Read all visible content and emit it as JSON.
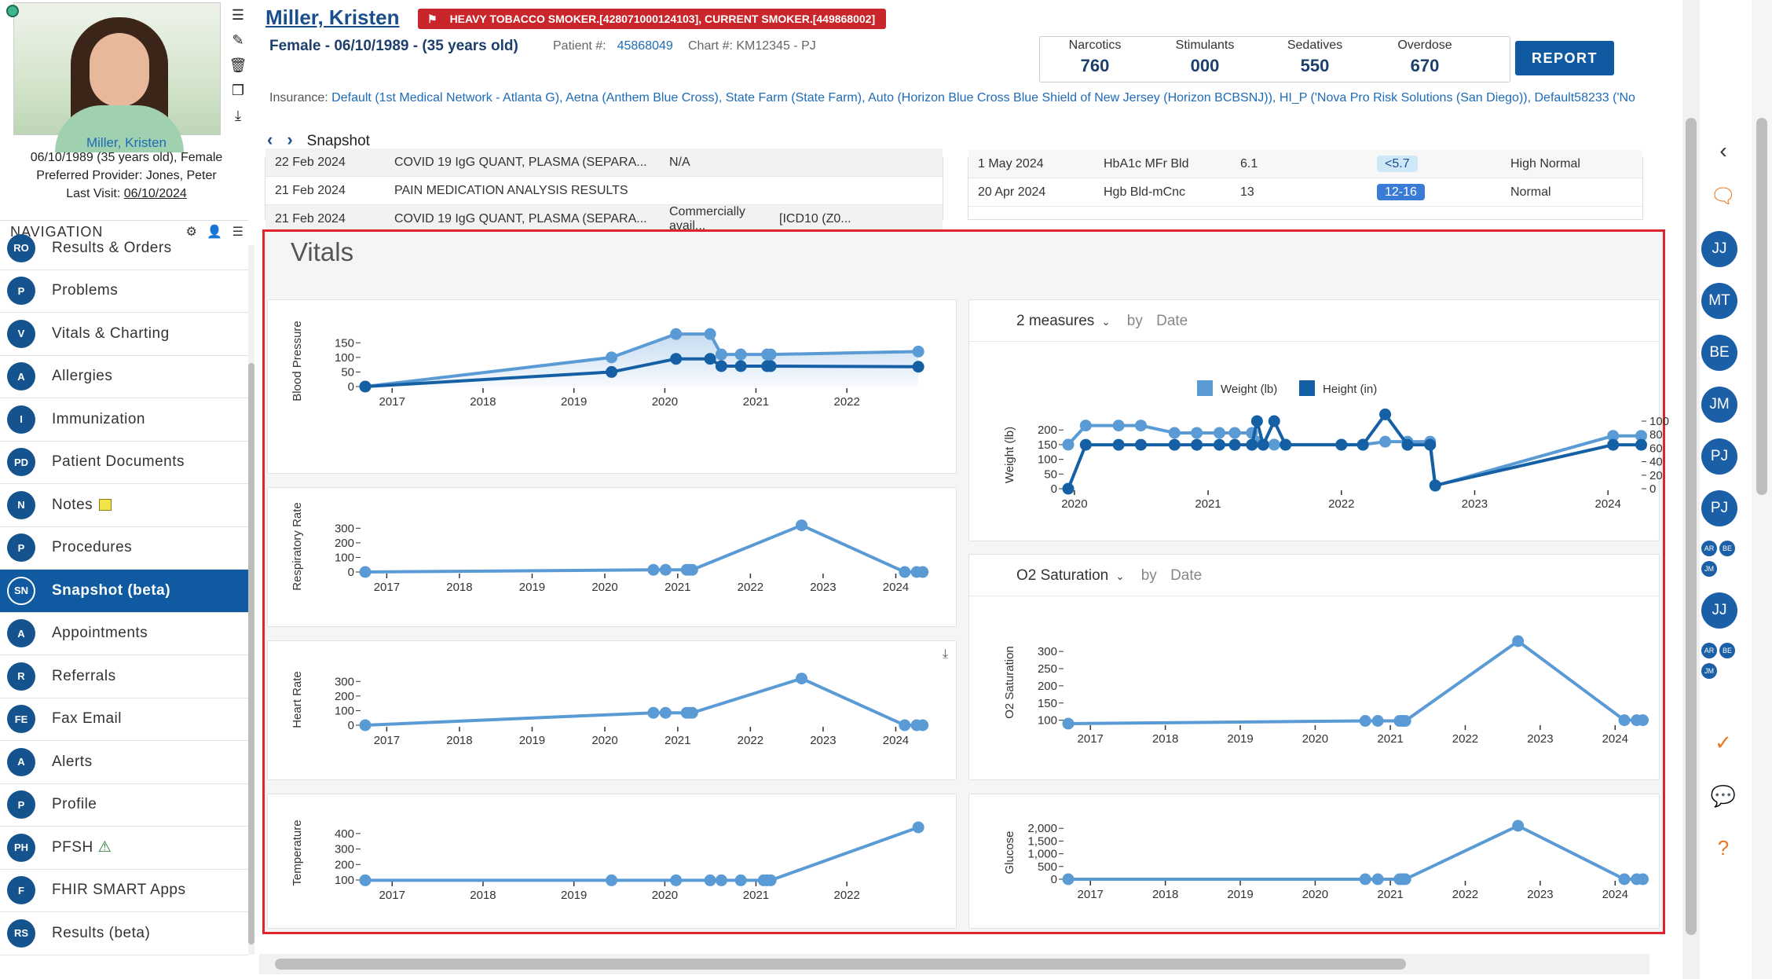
{
  "patient": {
    "name": "Miller, Kristen",
    "sidebar_name": "Miller, Kristen",
    "dob_line": "06/10/1989 (35 years old), Female",
    "preferred_provider_label": "Preferred Provider:",
    "preferred_provider": "Jones, Peter",
    "last_visit_label": "Last Visit:",
    "last_visit": "06/10/2024",
    "demographics": "Female - 06/10/1989 - (35 years old)",
    "patient_num_label": "Patient #:",
    "patient_num": "45868049",
    "chart_num": "Chart #: KM12345 - PJ",
    "alert": "HEAVY TOBACCO SMOKER.[428071000124103], CURRENT SMOKER.[449868002]"
  },
  "rx_counts": [
    {
      "label": "Narcotics",
      "value": "760"
    },
    {
      "label": "Stimulants",
      "value": "000"
    },
    {
      "label": "Sedatives",
      "value": "550"
    },
    {
      "label": "Overdose",
      "value": "670"
    }
  ],
  "report_button": "REPORT",
  "insurance_label": "Insurance:",
  "insurance": "Default (1st Medical Network - Atlanta G), Aetna (Anthem Blue Cross), State Farm (State Farm), Auto (Horizon Blue Cross Blue Shield of New Jersey (Horizon BCBSNJ)), HI_P ('Nova Pro Risk Solutions (San Diego)), Default58233 ('No",
  "breadcrumb": "Snapshot",
  "nav": {
    "title": "NAVIGATION",
    "items": [
      {
        "badge": "RO",
        "label": "Results & Orders"
      },
      {
        "badge": "P",
        "label": "Problems"
      },
      {
        "badge": "V",
        "label": "Vitals & Charting"
      },
      {
        "badge": "A",
        "label": "Allergies"
      },
      {
        "badge": "I",
        "label": "Immunization"
      },
      {
        "badge": "PD",
        "label": "Patient Documents"
      },
      {
        "badge": "N",
        "label": "Notes"
      },
      {
        "badge": "P",
        "label": "Procedures"
      },
      {
        "badge": "SN",
        "label": "Snapshot (beta)"
      },
      {
        "badge": "A",
        "label": "Appointments"
      },
      {
        "badge": "R",
        "label": "Referrals"
      },
      {
        "badge": "FE",
        "label": "Fax Email"
      },
      {
        "badge": "A",
        "label": "Alerts"
      },
      {
        "badge": "P",
        "label": "Profile"
      },
      {
        "badge": "PH",
        "label": "PFSH"
      },
      {
        "badge": "F",
        "label": "FHIR SMART Apps"
      },
      {
        "badge": "RS",
        "label": "Results (beta)"
      }
    ]
  },
  "results_table": [
    {
      "date": "22 Feb 2024",
      "test": "COVID 19 IgG QUANT, PLASMA (SEPARA...",
      "value": "N/A",
      "extra": ""
    },
    {
      "date": "21 Feb 2024",
      "test": "PAIN MEDICATION ANALYSIS RESULTS",
      "value": "",
      "extra": ""
    },
    {
      "date": "21 Feb 2024",
      "test": "COVID 19 IgG QUANT, PLASMA (SEPARA...",
      "value": "Commercially avail...",
      "extra": "[ICD10 (Z0..."
    }
  ],
  "labs_table": [
    {
      "date": "1 May 2024",
      "test": "HbA1c MFr Bld",
      "value": "6.1",
      "ref": "<5.7",
      "status": "High Normal"
    },
    {
      "date": "20 Apr 2024",
      "test": "Hgb Bld-mCnc",
      "value": "13",
      "ref": "12-16",
      "status": "Normal"
    }
  ],
  "vitals": {
    "title": "Vitals",
    "measures_select": "2 measures",
    "by_label": "by",
    "date_field": "Date",
    "o2_select": "O2 Saturation",
    "o2_by": "by",
    "o2_date_field": "Date",
    "colors": {
      "light": "#5b9bd5",
      "dark": "#1560a5"
    }
  },
  "chart_data": [
    {
      "id": "bp",
      "type": "area",
      "ylabel": "Blood Pressure",
      "x_ticks": [
        "2017",
        "2018",
        "2019",
        "2020",
        "2021",
        "2022"
      ],
      "y_ticks": [
        "0",
        "50",
        "100",
        "150"
      ],
      "ylim": [
        0,
        175
      ],
      "xlim": [
        "2016-09-15",
        "2022-11-15"
      ],
      "series": [
        {
          "dates": [
            "2016-09-15",
            "2019-06-01",
            "2020-02-15",
            "2020-07-01",
            "2020-08-15",
            "2020-11-01",
            "2021-02-15",
            "2021-03-01",
            "2022-10-15"
          ],
          "values": [
            0,
            100,
            180,
            180,
            110,
            110,
            110,
            110,
            120
          ]
        },
        {
          "dates": [
            "2016-09-15",
            "2019-06-01",
            "2020-02-15",
            "2020-07-01",
            "2020-08-15",
            "2020-11-01",
            "2021-02-15",
            "2021-03-01",
            "2022-10-15"
          ],
          "values": [
            0,
            50,
            95,
            95,
            70,
            70,
            70,
            70,
            68
          ]
        }
      ]
    },
    {
      "id": "resp",
      "type": "line",
      "ylabel": "Respiratory Rate",
      "x_ticks": [
        "2017",
        "2018",
        "2019",
        "2020",
        "2021",
        "2022",
        "2023",
        "2024"
      ],
      "y_ticks": [
        "0",
        "100",
        "200",
        "300"
      ],
      "ylim": [
        0,
        350
      ],
      "xlim": [
        "2016-09-15",
        "2024-06-01"
      ],
      "series": [
        {
          "dates": [
            "2016-09-15",
            "2020-09-01",
            "2020-11-01",
            "2021-02-15",
            "2021-03-01",
            "2021-03-15",
            "2022-09-15",
            "2024-02-15",
            "2024-04-15",
            "2024-05-15"
          ],
          "values": [
            0,
            15,
            15,
            15,
            15,
            15,
            320,
            0,
            0,
            0
          ]
        }
      ]
    },
    {
      "id": "hr",
      "type": "line",
      "ylabel": "Heart Rate",
      "x_ticks": [
        "2017",
        "2018",
        "2019",
        "2020",
        "2021",
        "2022",
        "2023",
        "2024"
      ],
      "y_ticks": [
        "0",
        "100",
        "200",
        "300"
      ],
      "ylim": [
        0,
        350
      ],
      "xlim": [
        "2016-09-15",
        "2024-06-01"
      ],
      "series": [
        {
          "dates": [
            "2016-09-15",
            "2020-09-01",
            "2020-11-01",
            "2021-02-15",
            "2021-03-01",
            "2021-03-15",
            "2022-09-15",
            "2024-02-15",
            "2024-04-15",
            "2024-05-15"
          ],
          "values": [
            0,
            85,
            85,
            85,
            85,
            85,
            320,
            0,
            0,
            0
          ]
        }
      ]
    },
    {
      "id": "temp",
      "type": "line",
      "ylabel": "Temperature",
      "x_ticks": [
        "2017",
        "2018",
        "2019",
        "2020",
        "2021",
        "2022"
      ],
      "y_ticks": [
        "100",
        "200",
        "300",
        "400"
      ],
      "ylim": [
        100,
        450
      ],
      "xlim": [
        "2016-09-15",
        "2022-11-15"
      ],
      "series": [
        {
          "dates": [
            "2016-09-15",
            "2019-06-01",
            "2020-02-15",
            "2020-07-01",
            "2020-08-15",
            "2020-11-01",
            "2021-02-01",
            "2021-02-15",
            "2021-03-01",
            "2022-10-15"
          ],
          "values": [
            98,
            98,
            98,
            98,
            98,
            98,
            98,
            98,
            98,
            440
          ]
        }
      ]
    },
    {
      "id": "wh",
      "type": "line",
      "ylabel": "Weight (lb)",
      "y2label": "Height (in)",
      "legend": [
        "Weight (lb)",
        "Height (in)"
      ],
      "x_ticks": [
        "2020",
        "2021",
        "2022",
        "2023",
        "2024"
      ],
      "y_ticks": [
        "0",
        "50",
        "100",
        "150",
        "200"
      ],
      "ylim": [
        0,
        230
      ],
      "y2_ticks": [
        "0",
        "20",
        "40",
        "60",
        "80",
        "100"
      ],
      "y2lim": [
        0,
        100
      ],
      "xlim": [
        "2019-12-15",
        "2024-04-15"
      ],
      "series": [
        {
          "name": "Weight (lb)",
          "dates": [
            "2019-12-15",
            "2020-02-01",
            "2020-05-01",
            "2020-07-01",
            "2020-10-01",
            "2020-12-01",
            "2021-02-01",
            "2021-03-15",
            "2021-05-01",
            "2021-05-15",
            "2021-06-01",
            "2021-07-01",
            "2021-08-01",
            "2022-01-01",
            "2022-03-01",
            "2022-05-01",
            "2022-07-01",
            "2022-09-01",
            "2022-09-15",
            "2024-01-15",
            "2024-04-01"
          ],
          "values": [
            150,
            215,
            215,
            215,
            190,
            190,
            190,
            190,
            190,
            160,
            150,
            150,
            150,
            150,
            150,
            160,
            160,
            160,
            10,
            180,
            180
          ]
        },
        {
          "name": "Height (in)",
          "dates": [
            "2019-12-15",
            "2020-02-01",
            "2020-05-01",
            "2020-07-01",
            "2020-10-01",
            "2020-12-01",
            "2021-02-01",
            "2021-03-15",
            "2021-05-01",
            "2021-05-15",
            "2021-06-01",
            "2021-07-01",
            "2021-08-01",
            "2022-01-01",
            "2022-03-01",
            "2022-05-01",
            "2022-07-01",
            "2022-09-01",
            "2022-09-15",
            "2024-01-15",
            "2024-04-01"
          ],
          "values": [
            0,
            65,
            65,
            65,
            65,
            65,
            65,
            65,
            65,
            100,
            65,
            100,
            65,
            65,
            65,
            110,
            65,
            65,
            5,
            65,
            65
          ]
        }
      ]
    },
    {
      "id": "o2",
      "type": "line",
      "ylabel": "O2 Saturation",
      "x_ticks": [
        "2017",
        "2018",
        "2019",
        "2020",
        "2021",
        "2022",
        "2023",
        "2024"
      ],
      "y_ticks": [
        "100",
        "150",
        "200",
        "250",
        "300"
      ],
      "ylim": [
        90,
        330
      ],
      "xlim": [
        "2016-09-15",
        "2024-06-01"
      ],
      "series": [
        {
          "dates": [
            "2016-09-15",
            "2020-09-01",
            "2020-11-01",
            "2021-02-15",
            "2021-03-01",
            "2021-03-15",
            "2022-09-15",
            "2024-02-15",
            "2024-04-15",
            "2024-05-15"
          ],
          "values": [
            90,
            98,
            98,
            98,
            98,
            98,
            330,
            100,
            100,
            100
          ]
        }
      ]
    },
    {
      "id": "glu",
      "type": "line",
      "ylabel": "Glucose",
      "x_ticks": [
        "2017",
        "2018",
        "2019",
        "2020",
        "2021",
        "2022",
        "2023",
        "2024"
      ],
      "y_ticks": [
        "0",
        "500",
        "1,000",
        "1,500",
        "2,000"
      ],
      "ylim": [
        0,
        2100
      ],
      "xlim": [
        "2016-09-15",
        "2024-06-01"
      ],
      "series": [
        {
          "dates": [
            "2016-09-15",
            "2020-09-01",
            "2020-11-01",
            "2021-02-15",
            "2021-03-01",
            "2021-03-15",
            "2022-09-15",
            "2024-02-15",
            "2024-04-15",
            "2024-05-15"
          ],
          "values": [
            0,
            0,
            0,
            0,
            0,
            0,
            2100,
            0,
            0,
            0
          ]
        }
      ]
    }
  ],
  "right_rail": {
    "avatars": [
      "JJ",
      "MT",
      "BE",
      "JM",
      "PJ",
      "PJ"
    ],
    "small_avatars": [
      "AR",
      "BE",
      "JM"
    ],
    "avatar2": "JJ",
    "small_avatars2": [
      "AR",
      "BE",
      "JM"
    ]
  }
}
